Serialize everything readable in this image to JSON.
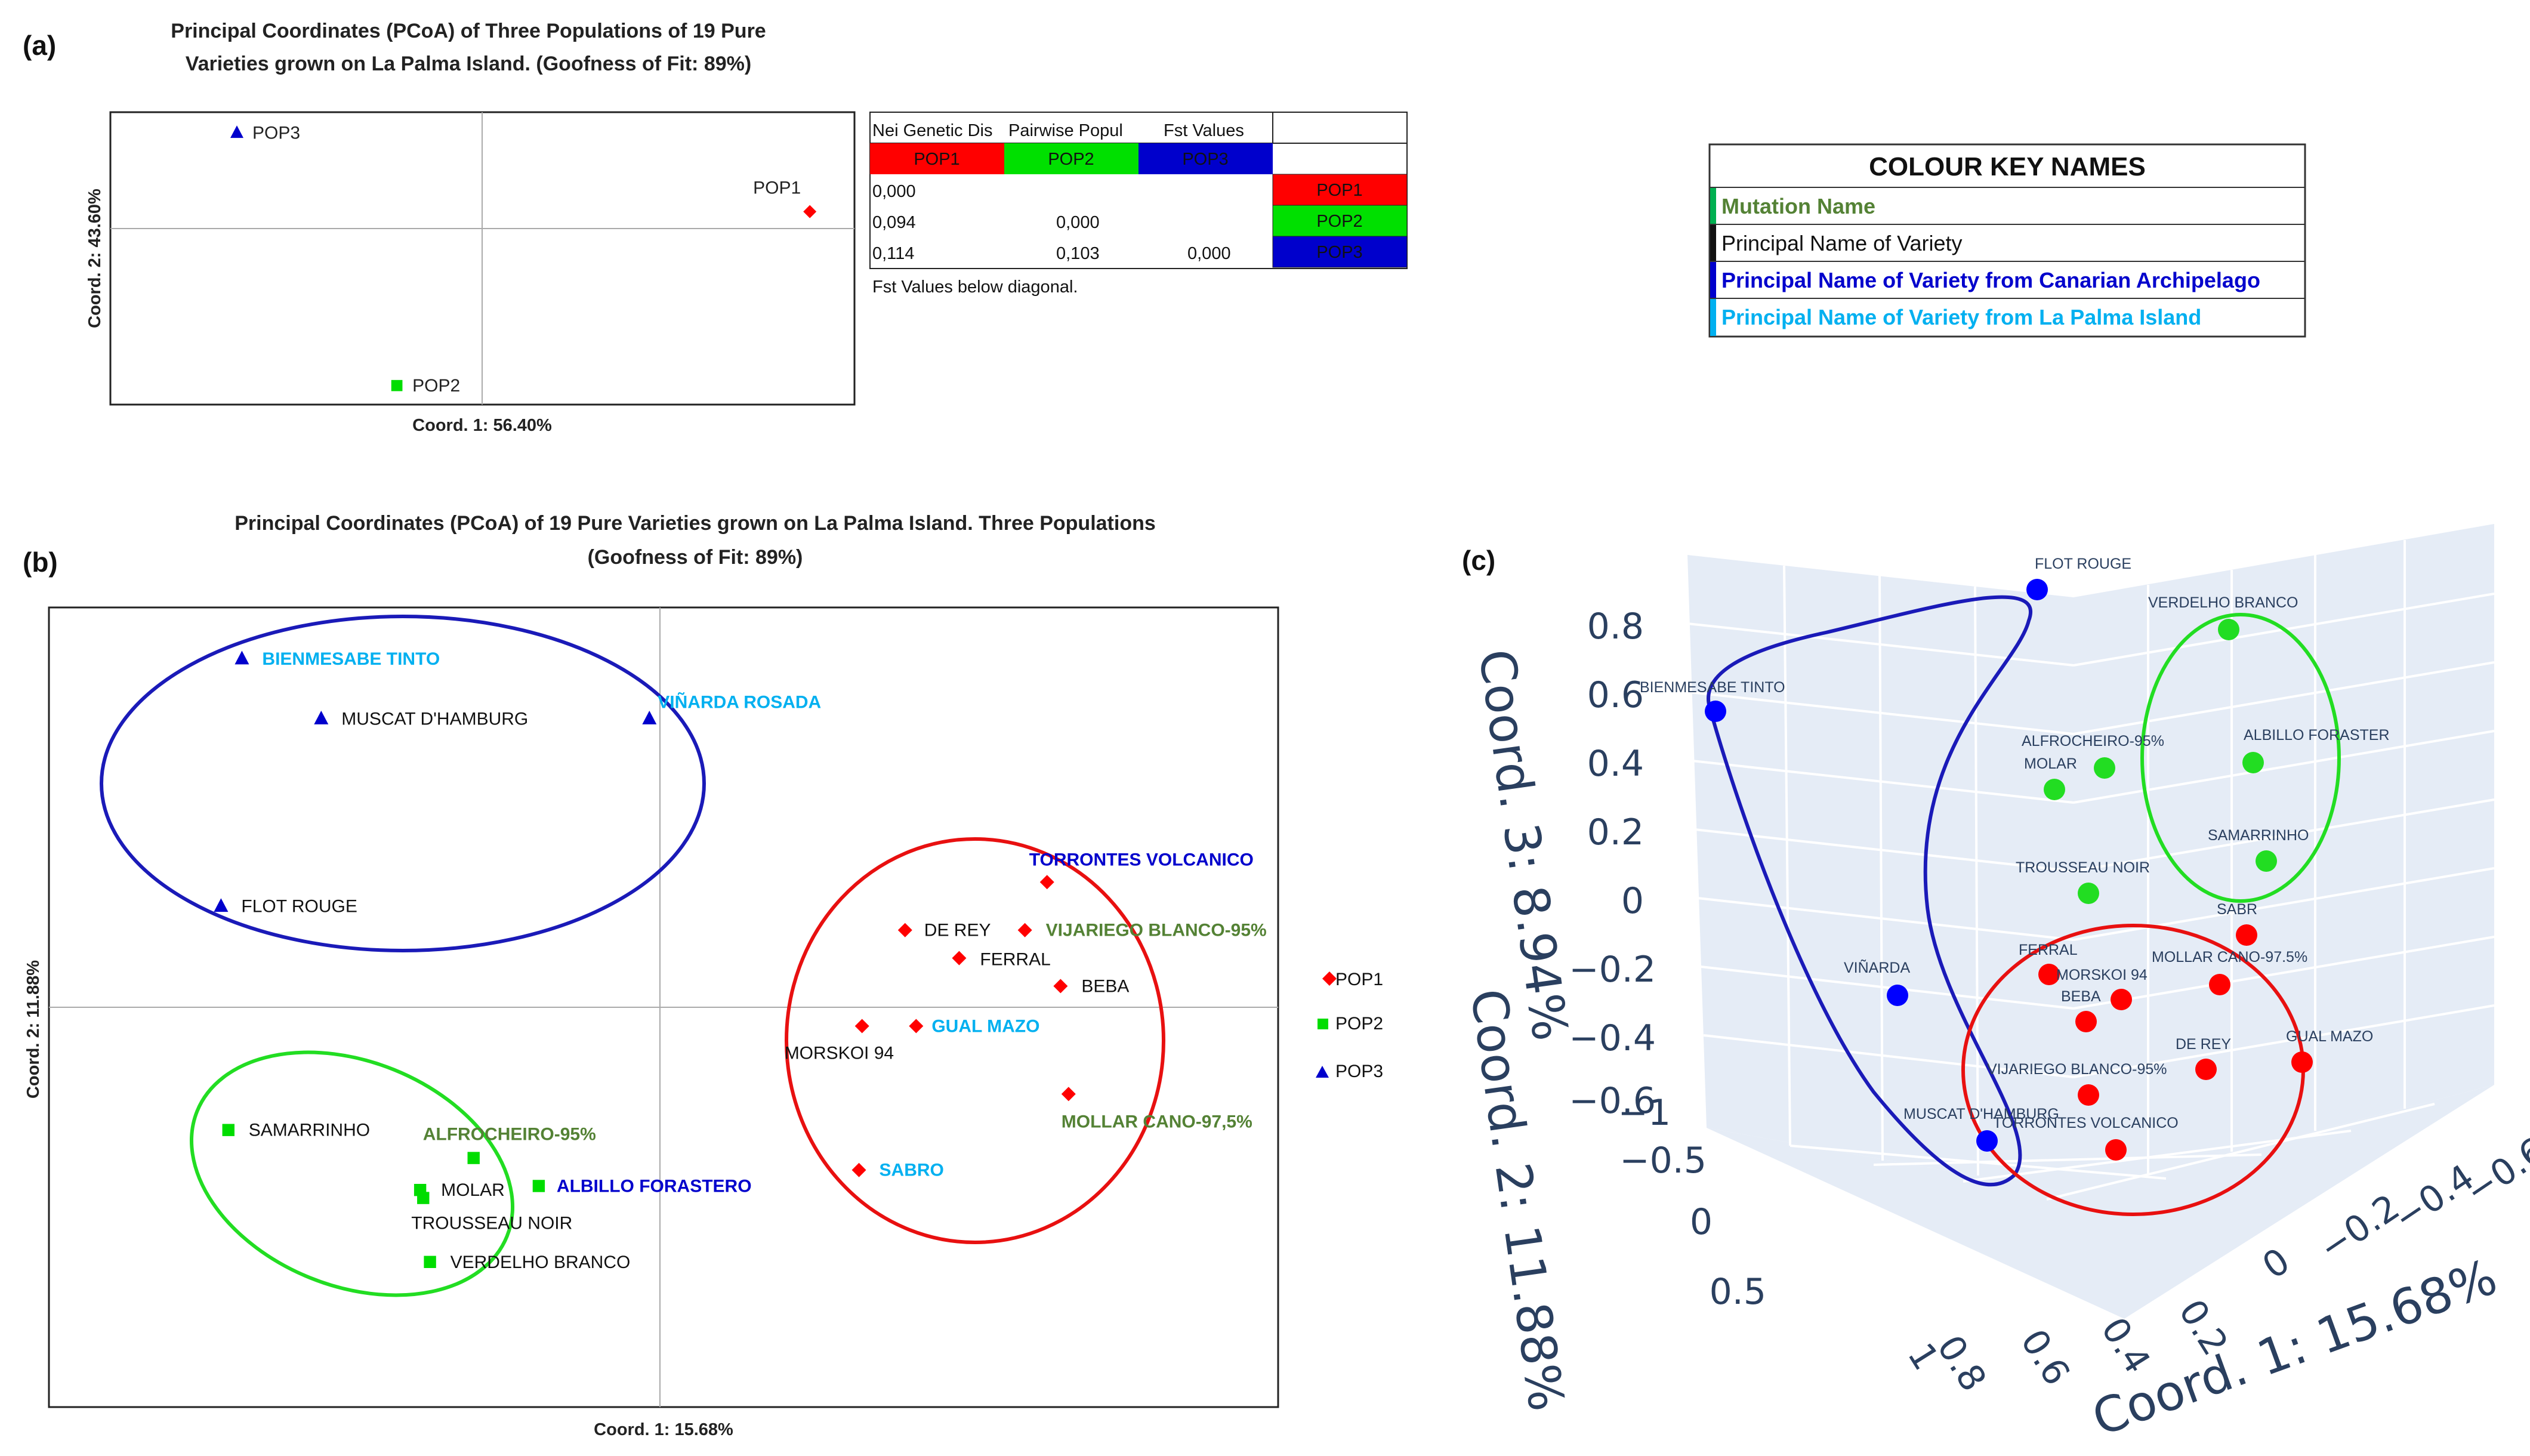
{
  "panels": {
    "a": "(a)",
    "b": "(b)",
    "c": "(c)"
  },
  "colors": {
    "pop1": "#ff0000",
    "pop2": "#00d000",
    "pop3": "#0000cc",
    "mutation": "#548235",
    "principal": "#111111",
    "canarian": "#0000cc",
    "lapalma": "#00b0f0"
  },
  "chart_data": [
    {
      "id": "a",
      "type": "scatter",
      "title": [
        "Principal Coordinates (PCoA) of Three Populations of 19 Pure",
        "Varieties grown on La Palma Island. (Goofness of Fit: 89%)"
      ],
      "xlabel": "Coord. 1: 56.40%",
      "ylabel": "Coord. 2: 43.60%",
      "xlim": [
        -1,
        1
      ],
      "ylim": [
        -1,
        1
      ],
      "points": [
        {
          "label": "POP1",
          "pop": "POP1",
          "x": 0.88,
          "y": 0.32
        },
        {
          "label": "POP2",
          "pop": "POP2",
          "x": -0.23,
          "y": -0.87
        },
        {
          "label": "POP3",
          "pop": "POP3",
          "x": -0.66,
          "y": 0.86
        }
      ]
    },
    {
      "id": "b",
      "type": "scatter",
      "title": [
        "Principal Coordinates (PCoA) of 19 Pure Varieties grown on La Palma Island. Three Populations",
        "(Goofness of Fit: 89%)"
      ],
      "xlabel": "Coord. 1: 15.68%",
      "ylabel": "Coord. 2: 11.88%",
      "xlim": [
        -1,
        1
      ],
      "ylim": [
        -1,
        1
      ],
      "legend": [
        "POP1",
        "POP2",
        "POP3"
      ],
      "points": [
        {
          "label": "BIENMESABE TINTO",
          "pop": "POP3",
          "cat": "lapalma",
          "x": -0.686,
          "y": 0.872
        },
        {
          "label": "MUSCAT D'HAMBURG",
          "pop": "POP3",
          "cat": "principal",
          "x": -0.557,
          "y": 0.722
        },
        {
          "label": "VIÑARDA  ROSADA",
          "pop": "POP3",
          "cat": "lapalma",
          "x": -0.023,
          "y": 0.722
        },
        {
          "label": "FLOT ROUGE",
          "pop": "POP3",
          "cat": "principal",
          "x": -0.72,
          "y": 0.253
        },
        {
          "label": "TORRONTES VOLCANICO",
          "pop": "POP1",
          "cat": "canarian",
          "x": 0.624,
          "y": 0.313
        },
        {
          "label": "DE REY",
          "pop": "POP1",
          "cat": "principal",
          "x": 0.393,
          "y": 0.193
        },
        {
          "label": "VIJARIEGO BLANCO-95%",
          "pop": "POP1",
          "cat": "mutation",
          "x": 0.588,
          "y": 0.193
        },
        {
          "label": "FERRAL",
          "pop": "POP1",
          "cat": "principal",
          "x": 0.481,
          "y": 0.123
        },
        {
          "label": "BEBA",
          "pop": "POP1",
          "cat": "principal",
          "x": 0.646,
          "y": 0.053
        },
        {
          "label": "MORSKOI 94",
          "pop": "POP1",
          "cat": "principal",
          "x": 0.323,
          "y": -0.047
        },
        {
          "label": "GUAL MAZO",
          "pop": "POP1",
          "cat": "lapalma",
          "x": 0.411,
          "y": -0.047
        },
        {
          "label": "MOLLAR CANO-97,5%",
          "pop": "POP1",
          "cat": "mutation",
          "x": 0.659,
          "y": -0.217
        },
        {
          "label": "SABRO",
          "pop": "POP1",
          "cat": "lapalma",
          "x": 0.318,
          "y": -0.407
        },
        {
          "label": "SAMARRINHO",
          "pop": "POP2",
          "cat": "principal",
          "x": -0.708,
          "y": -0.307
        },
        {
          "label": "ALFROCHEIRO-95%",
          "pop": "POP2",
          "cat": "mutation",
          "x": -0.309,
          "y": -0.377
        },
        {
          "label": "MOLAR",
          "pop": "POP2",
          "cat": "principal",
          "x": -0.396,
          "y": -0.457
        },
        {
          "label": "ALBILLO FORASTERO",
          "pop": "POP2",
          "cat": "canarian",
          "x": -0.203,
          "y": -0.447
        },
        {
          "label": "TROUSSEAU NOIR",
          "pop": "POP2",
          "cat": "principal",
          "x": -0.391,
          "y": -0.477
        },
        {
          "label": "VERDELHO BRANCO",
          "pop": "POP2",
          "cat": "principal",
          "x": -0.38,
          "y": -0.637
        }
      ]
    },
    {
      "id": "c",
      "type": "scatter",
      "title": "",
      "xlabel": "Coord. 1: 15.68%",
      "ylabel": "Coord. 2: 11.88%",
      "zlabel": "Coord. 3: 8.94%",
      "x_ticks": [
        "−0.6",
        "−0.4",
        "−0.2",
        "0",
        "0.2",
        "0.4",
        "0.6",
        "0.8"
      ],
      "y_ticks": [
        "−1",
        "−0.5",
        "0",
        "0.5",
        "1"
      ],
      "z_ticks": [
        "0.8",
        "0.6",
        "0.4",
        "0.2",
        "0",
        "−0.2",
        "−0.4",
        "−0.6"
      ],
      "points": [
        {
          "label": "FLOT ROUGE",
          "pop": "POP3"
        },
        {
          "label": "BIENMESABE TINTO",
          "pop": "POP3"
        },
        {
          "label": "VIÑARDA",
          "pop": "POP3"
        },
        {
          "label": "MUSCAT D'HAMBURG",
          "pop": "POP3"
        },
        {
          "label": "VERDELHO BRANCO",
          "pop": "POP2"
        },
        {
          "label": "ALFROCHEIRO-95%",
          "pop": "POP2"
        },
        {
          "label": "ALBILLO FORASTER",
          "pop": "POP2"
        },
        {
          "label": "MOLAR",
          "pop": "POP2"
        },
        {
          "label": "SAMARRINHO",
          "pop": "POP2"
        },
        {
          "label": "TROUSSEAU NOIR",
          "pop": "POP2"
        },
        {
          "label": "SABR",
          "pop": "POP1"
        },
        {
          "label": "FERRAL",
          "pop": "POP1"
        },
        {
          "label": "MOLLAR CANO-97.5%",
          "pop": "POP1"
        },
        {
          "label": "MORSKOI 94",
          "pop": "POP1"
        },
        {
          "label": "BEBA",
          "pop": "POP1"
        },
        {
          "label": "DE REY",
          "pop": "POP1"
        },
        {
          "label": "GUAL MAZO",
          "pop": "POP1"
        },
        {
          "label": "VIJARIEGO BLANCO-95%",
          "pop": "POP1"
        },
        {
          "label": "TORRONTES VOLCANICO",
          "pop": "POP1"
        }
      ]
    },
    {
      "id": "a-table",
      "type": "table",
      "header_cells": [
        "Nei Genetic Dis",
        "Pairwise Popul",
        "Fst Values"
      ],
      "columns": [
        "POP1",
        "POP2",
        "POP3"
      ],
      "rows": [
        {
          "name": "POP1",
          "values": [
            "0,000",
            "",
            ""
          ]
        },
        {
          "name": "POP2",
          "values": [
            "0,094",
            "0,000",
            ""
          ]
        },
        {
          "name": "POP3",
          "values": [
            "0,114",
            "0,103",
            "0,000"
          ]
        }
      ],
      "note": "Fst Values below diagonal."
    }
  ],
  "colour_key": {
    "title": "COLOUR KEY NAMES",
    "items": [
      {
        "label": "Mutation Name",
        "color": "#548235"
      },
      {
        "label": "Principal Name of Variety",
        "color": "#111111"
      },
      {
        "label": "Principal Name of Variety from Canarian Archipelago",
        "color": "#0000cc"
      },
      {
        "label": "Principal Name of Variety from La Palma Island",
        "color": "#00b0f0"
      }
    ]
  }
}
